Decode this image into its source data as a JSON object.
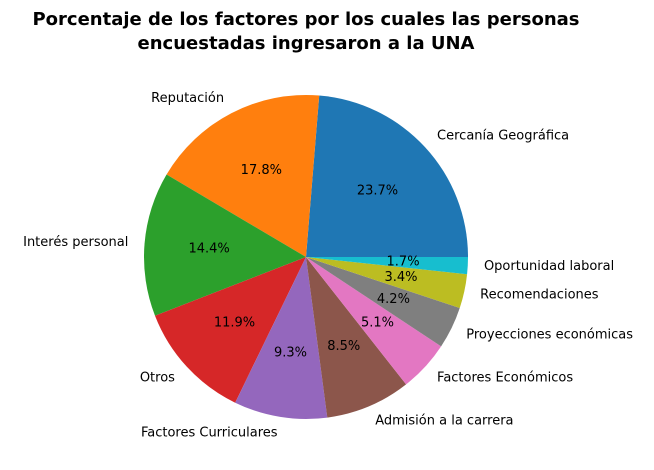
{
  "chart_data": {
    "type": "pie",
    "title_lines": [
      "Porcentaje de los factores por los cuales las personas",
      "encuestadas ingresaron a la UNA"
    ],
    "slices": [
      {
        "label": "Cercanía Geográfica",
        "value": 23.7,
        "pct_text": "23.7%",
        "color": "#1f77b4"
      },
      {
        "label": "Reputación",
        "value": 17.8,
        "pct_text": "17.8%",
        "color": "#ff7f0e"
      },
      {
        "label": "Interés personal",
        "value": 14.4,
        "pct_text": "14.4%",
        "color": "#2ca02c"
      },
      {
        "label": "Otros",
        "value": 11.9,
        "pct_text": "11.9%",
        "color": "#d62728"
      },
      {
        "label": "Factores Curriculares",
        "value": 9.3,
        "pct_text": "9.3%",
        "color": "#9467bd"
      },
      {
        "label": "Admisión a la carrera",
        "value": 8.5,
        "pct_text": "8.5%",
        "color": "#8c564b"
      },
      {
        "label": "Factores Económicos",
        "value": 5.1,
        "pct_text": "5.1%",
        "color": "#e377c2"
      },
      {
        "label": "Proyecciones económicas",
        "value": 4.2,
        "pct_text": "4.2%",
        "color": "#7f7f7f"
      },
      {
        "label": "Recomendaciones",
        "value": 3.4,
        "pct_text": "3.4%",
        "color": "#bcbd22"
      },
      {
        "label": "Oportunidad laboral",
        "value": 1.7,
        "pct_text": "1.7%",
        "color": "#17becf"
      }
    ],
    "start_angle_deg": 0,
    "direction": "counterclockwise"
  }
}
